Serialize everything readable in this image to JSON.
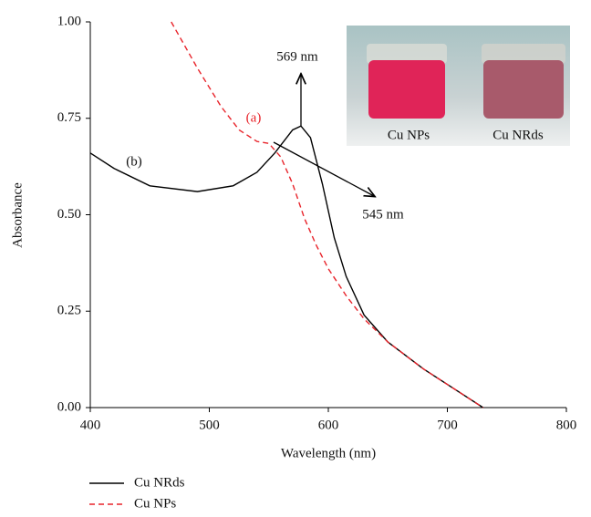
{
  "chart_data": {
    "type": "line",
    "x_label": "Wavelength (nm)",
    "y_label": "Absorbance",
    "xlim": [
      400,
      800
    ],
    "xticks": [
      400,
      500,
      600,
      700,
      800
    ],
    "ylim": [
      0,
      1
    ],
    "yticks": [
      {
        "value": 0,
        "label": "0.00"
      },
      {
        "value": 0.25,
        "label": "0.25"
      },
      {
        "value": 0.5,
        "label": "0.50"
      },
      {
        "value": 0.75,
        "label": "0.75"
      },
      {
        "value": 1,
        "label": "1.00"
      }
    ],
    "series": [
      {
        "name": "Cu NRds",
        "color": "#000000",
        "dashed": false,
        "x": [
          400,
          420,
          450,
          490,
          520,
          540,
          555,
          570,
          577,
          585,
          595,
          605,
          615,
          630,
          650,
          680,
          710,
          730
        ],
        "values": [
          0.66,
          0.62,
          0.575,
          0.56,
          0.575,
          0.61,
          0.66,
          0.72,
          0.73,
          0.7,
          0.58,
          0.44,
          0.34,
          0.24,
          0.17,
          0.1,
          0.04,
          0.0
        ]
      },
      {
        "name": "Cu NPs",
        "color": "#e8232a",
        "dashed": true,
        "x": [
          468,
          490,
          510,
          525,
          540,
          550,
          560,
          570,
          580,
          590,
          600,
          615,
          630,
          650,
          680,
          710,
          730
        ],
        "values": [
          1.0,
          0.88,
          0.78,
          0.72,
          0.69,
          0.685,
          0.65,
          0.58,
          0.49,
          0.42,
          0.36,
          0.29,
          0.23,
          0.17,
          0.1,
          0.04,
          0.0
        ]
      }
    ],
    "annotations": [
      "569 nm",
      "545 nm",
      "(a)",
      "(b)"
    ],
    "inset_labels": [
      "Cu NPs",
      "Cu NRds"
    ]
  }
}
